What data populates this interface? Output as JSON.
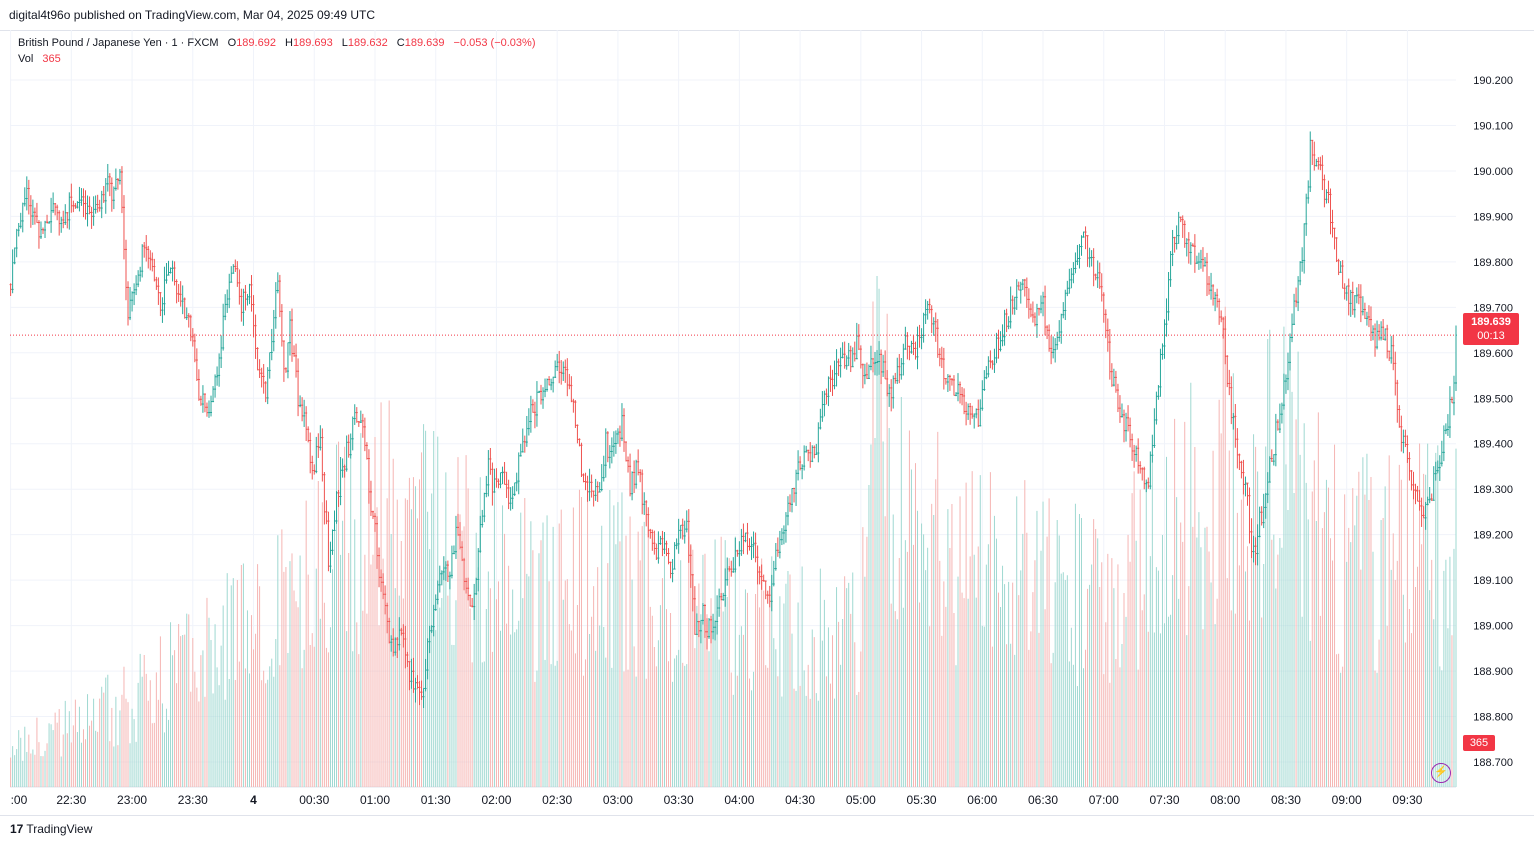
{
  "header": {
    "published": "digital4t96o published on TradingView.com, Mar 04, 2025 09:49 UTC"
  },
  "legend": {
    "symbol": "British Pound / Japanese Yen · 1 · FXCM",
    "o_label": "O",
    "o": "189.692",
    "h_label": "H",
    "h": "189.693",
    "l_label": "L",
    "l": "189.632",
    "c_label": "C",
    "c": "189.639",
    "change": "−0.053 (−0.03%)",
    "vol_label": "Vol",
    "vol": "365"
  },
  "last_price": {
    "price": "189.639",
    "countdown": "00:13"
  },
  "volume_tag": "365",
  "footer": {
    "brand": "TradingView",
    "logo_mark": "17"
  },
  "colors": {
    "up": "#26a69a",
    "down": "#ef5350",
    "accent": "#f23645",
    "grid": "#f0f3fa",
    "bolt": "#9c27b0"
  },
  "chart_data": {
    "type": "candlestick",
    "title": "British Pound / Japanese Yen · 1 · FXCM",
    "y_ticks": [
      "190.200",
      "190.100",
      "190.000",
      "189.900",
      "189.800",
      "189.700",
      "189.600",
      "189.500",
      "189.400",
      "189.300",
      "189.200",
      "189.100",
      "189.000",
      "188.900",
      "188.800",
      "188.700"
    ],
    "y_tick_values": [
      190.2,
      190.1,
      190.0,
      189.9,
      189.8,
      189.7,
      189.6,
      189.5,
      189.4,
      189.3,
      189.2,
      189.1,
      189.0,
      188.9,
      188.8,
      188.7
    ],
    "ylim": [
      188.645,
      190.31
    ],
    "x_ticks": [
      ":00",
      "22:30",
      "23:00",
      "23:30",
      "4",
      "00:30",
      "01:00",
      "01:30",
      "02:00",
      "02:30",
      "03:00",
      "03:30",
      "04:00",
      "04:30",
      "05:00",
      "05:30",
      "06:00",
      "06:30",
      "07:00",
      "07:30",
      "08:00",
      "08:30",
      "09:00",
      "09:30"
    ],
    "x_tick_minutes": [
      -120,
      -90,
      -60,
      -30,
      0,
      30,
      60,
      90,
      120,
      150,
      180,
      210,
      240,
      270,
      300,
      330,
      360,
      390,
      420,
      450,
      480,
      510,
      540,
      570
    ],
    "xlim_minutes": [
      -120.3,
      594
    ],
    "last_price": 189.639,
    "path_minutes": [
      -120,
      -116,
      -112,
      -108,
      -104,
      -100,
      -97,
      -95,
      -91,
      -88,
      -85,
      -81,
      -78,
      -72,
      -69,
      -66,
      -62,
      -58,
      -53,
      -50,
      -46,
      -42,
      -39,
      -35,
      -30,
      -27,
      -22,
      -18,
      -14,
      -12,
      -10,
      -6,
      -2,
      0,
      3,
      6,
      9,
      12,
      15,
      18,
      22,
      25,
      29,
      33,
      37,
      40,
      44,
      47,
      50,
      55,
      57,
      60,
      64,
      68,
      73,
      76,
      80,
      83,
      86,
      90,
      94,
      97,
      100,
      104,
      108,
      112,
      116,
      119,
      122,
      125,
      128,
      133,
      136,
      140,
      145,
      149,
      153,
      155,
      158,
      162,
      166,
      170,
      174,
      178,
      182,
      186,
      190,
      194,
      198,
      202,
      206,
      210,
      214,
      218,
      222,
      226,
      230,
      234,
      238,
      242,
      246,
      250,
      254,
      258,
      262,
      266,
      270,
      274,
      278,
      282,
      286,
      290,
      295,
      298,
      302,
      306,
      310,
      314,
      318,
      322,
      326,
      330,
      334,
      338,
      342,
      346,
      350,
      354,
      358,
      362,
      366,
      370,
      374,
      378,
      382,
      386,
      390,
      394,
      398,
      402,
      406,
      410,
      414,
      418,
      422,
      426,
      430,
      434,
      438,
      442,
      446,
      450,
      454,
      458,
      462,
      466,
      470,
      474,
      478,
      482,
      486,
      490,
      494,
      498,
      502,
      506,
      510,
      514,
      518,
      522,
      526,
      530,
      534,
      538,
      542,
      546,
      550,
      554,
      558,
      562,
      566,
      570,
      574,
      578,
      582,
      586,
      590,
      594
    ],
    "path_prices": [
      189.75,
      189.9,
      189.95,
      189.88,
      189.85,
      189.9,
      189.92,
      189.87,
      189.92,
      189.94,
      189.93,
      189.9,
      189.92,
      189.97,
      189.95,
      190.02,
      189.68,
      189.75,
      189.85,
      189.78,
      189.7,
      189.8,
      189.75,
      189.7,
      189.65,
      189.5,
      189.48,
      189.55,
      189.72,
      189.75,
      189.8,
      189.7,
      189.75,
      189.65,
      189.55,
      189.52,
      189.62,
      189.78,
      189.55,
      189.65,
      189.5,
      189.45,
      189.35,
      189.4,
      189.15,
      189.25,
      189.35,
      189.4,
      189.48,
      189.4,
      189.3,
      189.2,
      189.05,
      188.95,
      188.98,
      188.9,
      188.85,
      188.82,
      188.95,
      189.05,
      189.15,
      189.12,
      189.2,
      189.1,
      189.05,
      189.2,
      189.35,
      189.3,
      189.32,
      189.3,
      189.28,
      189.4,
      189.45,
      189.5,
      189.52,
      189.55,
      189.58,
      189.55,
      189.5,
      189.35,
      189.3,
      189.28,
      189.4,
      189.38,
      189.45,
      189.3,
      189.35,
      189.22,
      189.15,
      189.18,
      189.12,
      189.2,
      189.22,
      189.0,
      189.02,
      188.98,
      189.05,
      189.12,
      189.15,
      189.18,
      189.2,
      189.1,
      189.05,
      189.15,
      189.2,
      189.3,
      189.35,
      189.38,
      189.4,
      189.5,
      189.55,
      189.6,
      189.58,
      189.62,
      189.55,
      189.6,
      189.58,
      189.5,
      189.55,
      189.62,
      189.6,
      189.65,
      189.7,
      189.62,
      189.55,
      189.52,
      189.5,
      189.48,
      189.45,
      189.55,
      189.6,
      189.65,
      189.7,
      189.75,
      189.72,
      189.68,
      189.7,
      189.6,
      189.65,
      189.75,
      189.82,
      189.85,
      189.8,
      189.75,
      189.6,
      189.5,
      189.45,
      189.4,
      189.35,
      189.3,
      189.5,
      189.65,
      189.85,
      189.9,
      189.82,
      189.8,
      189.78,
      189.72,
      189.68,
      189.5,
      189.4,
      189.3,
      189.15,
      189.25,
      189.35,
      189.45,
      189.55,
      189.7,
      189.8,
      190.05,
      190.0,
      189.95,
      189.85,
      189.75,
      189.72,
      189.7,
      189.68,
      189.62,
      189.65,
      189.6,
      189.45,
      189.35,
      189.28,
      189.25,
      189.3,
      189.38,
      189.45,
      189.55,
      189.7,
      189.64
    ],
    "volume_profile_minutes": [
      -120,
      -60,
      0,
      30,
      60,
      90,
      120,
      180,
      240,
      300,
      305,
      320,
      360,
      420,
      450,
      480,
      510,
      540,
      570,
      594
    ],
    "volume_profile_values": [
      25,
      60,
      120,
      150,
      190,
      170,
      150,
      140,
      120,
      100,
      260,
      190,
      150,
      140,
      170,
      230,
      220,
      150,
      170,
      160
    ]
  },
  "vol_ylim": [
    0,
    480
  ]
}
